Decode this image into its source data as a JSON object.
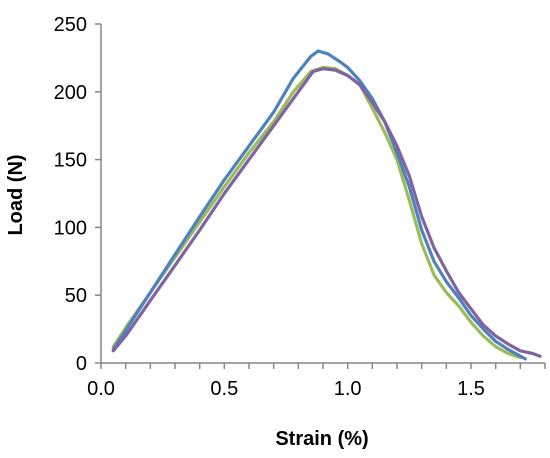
{
  "chart_data": {
    "type": "line",
    "title": "",
    "xlabel": "Strain (%)",
    "ylabel": "Load (N)",
    "xlim": [
      0,
      1.8
    ],
    "ylim": [
      0,
      250
    ],
    "x_ticks": [
      0.0,
      0.5,
      1.0,
      1.5
    ],
    "x_tick_labels": [
      "0.0",
      "0.5",
      "1.0",
      "1.5"
    ],
    "x_minor_step": 0.1,
    "y_ticks": [
      0,
      50,
      100,
      150,
      200,
      250
    ],
    "y_tick_labels": [
      "0",
      "50",
      "100",
      "150",
      "200",
      "250"
    ],
    "grid": false,
    "legend": "none",
    "series": [
      {
        "color": "#9bbb59",
        "points": [
          [
            0.05,
            12
          ],
          [
            0.1,
            26
          ],
          [
            0.2,
            52
          ],
          [
            0.3,
            78
          ],
          [
            0.4,
            104
          ],
          [
            0.5,
            130
          ],
          [
            0.6,
            155
          ],
          [
            0.7,
            178
          ],
          [
            0.78,
            200
          ],
          [
            0.85,
            215
          ],
          [
            0.9,
            218
          ],
          [
            0.95,
            217
          ],
          [
            1.0,
            212
          ],
          [
            1.05,
            205
          ],
          [
            1.1,
            188
          ],
          [
            1.15,
            170
          ],
          [
            1.2,
            150
          ],
          [
            1.25,
            120
          ],
          [
            1.3,
            88
          ],
          [
            1.35,
            65
          ],
          [
            1.4,
            52
          ],
          [
            1.45,
            42
          ],
          [
            1.5,
            30
          ],
          [
            1.55,
            20
          ],
          [
            1.6,
            12
          ],
          [
            1.65,
            7
          ],
          [
            1.7,
            4
          ]
        ]
      },
      {
        "color": "#4f81bd",
        "points": [
          [
            0.05,
            10
          ],
          [
            0.1,
            24
          ],
          [
            0.2,
            52
          ],
          [
            0.3,
            80
          ],
          [
            0.4,
            108
          ],
          [
            0.5,
            135
          ],
          [
            0.6,
            160
          ],
          [
            0.7,
            185
          ],
          [
            0.78,
            210
          ],
          [
            0.85,
            226
          ],
          [
            0.88,
            230
          ],
          [
            0.92,
            228
          ],
          [
            0.97,
            222
          ],
          [
            1.0,
            218
          ],
          [
            1.05,
            208
          ],
          [
            1.1,
            195
          ],
          [
            1.15,
            178
          ],
          [
            1.2,
            155
          ],
          [
            1.25,
            130
          ],
          [
            1.3,
            98
          ],
          [
            1.35,
            75
          ],
          [
            1.4,
            60
          ],
          [
            1.45,
            48
          ],
          [
            1.5,
            35
          ],
          [
            1.55,
            25
          ],
          [
            1.6,
            16
          ],
          [
            1.65,
            10
          ],
          [
            1.7,
            5
          ],
          [
            1.72,
            3
          ]
        ]
      },
      {
        "color": "#8064a2",
        "points": [
          [
            0.05,
            9
          ],
          [
            0.1,
            20
          ],
          [
            0.2,
            46
          ],
          [
            0.3,
            72
          ],
          [
            0.4,
            98
          ],
          [
            0.5,
            125
          ],
          [
            0.6,
            150
          ],
          [
            0.7,
            175
          ],
          [
            0.8,
            200
          ],
          [
            0.86,
            215
          ],
          [
            0.9,
            217
          ],
          [
            0.95,
            216
          ],
          [
            1.0,
            212
          ],
          [
            1.05,
            205
          ],
          [
            1.1,
            192
          ],
          [
            1.15,
            178
          ],
          [
            1.2,
            160
          ],
          [
            1.25,
            138
          ],
          [
            1.3,
            108
          ],
          [
            1.35,
            85
          ],
          [
            1.4,
            68
          ],
          [
            1.45,
            52
          ],
          [
            1.5,
            40
          ],
          [
            1.55,
            28
          ],
          [
            1.6,
            20
          ],
          [
            1.65,
            14
          ],
          [
            1.7,
            9
          ],
          [
            1.75,
            7
          ],
          [
            1.78,
            5
          ]
        ]
      }
    ]
  }
}
